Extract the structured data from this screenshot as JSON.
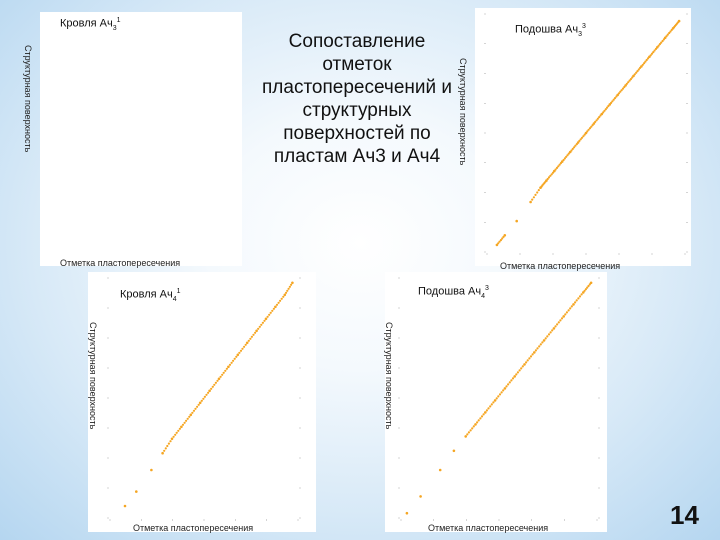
{
  "slide": {
    "title": "Сопоставление отметок пластопересечений и структурных поверхностей по пластам Ач3 и Ач4",
    "page_number": "14"
  },
  "colors": {
    "points": "#f5a623",
    "background_accent": "#b5d6f0"
  },
  "panels": {
    "top_left": {
      "title_main": "Кровля Ач",
      "title_sub": "3",
      "title_sup": "1",
      "ylabel": "Структурная поверхность",
      "xlabel": "Отметка пластопересечения"
    },
    "top_right": {
      "title_main": "Подошва Ач",
      "title_sub": "3",
      "title_sup": "3",
      "ylabel": "Структурная поверхность",
      "xlabel": "Отметка пластопересечения"
    },
    "bottom_left": {
      "title_main": "Кровля Ач",
      "title_sub": "4",
      "title_sup": "1",
      "ylabel": "Структурная поверхность",
      "xlabel": "Отметка пластопересечения"
    },
    "bottom_right": {
      "title_main": "Подошва Ач",
      "title_sub": "4",
      "title_sup": "3",
      "ylabel": "Структурная поверхность",
      "xlabel": "Отметка пластопересечения"
    }
  },
  "chart_data": [
    {
      "type": "scatter",
      "panel": "top_right",
      "title": "Подошва Ач3 3",
      "xlabel": "Отметка пластопересечения",
      "ylabel": "Структурная поверхность",
      "x": [
        0.05,
        0.09,
        0.15,
        0.22,
        0.27,
        0.3,
        0.34,
        0.38,
        0.42,
        0.46,
        0.5,
        0.54,
        0.58,
        0.62,
        0.66,
        0.7,
        0.74,
        0.78,
        0.82,
        0.86,
        0.9,
        0.94,
        0.97
      ],
      "y": [
        0.03,
        0.07,
        0.13,
        0.21,
        0.27,
        0.3,
        0.34,
        0.38,
        0.42,
        0.46,
        0.5,
        0.54,
        0.58,
        0.62,
        0.66,
        0.7,
        0.74,
        0.78,
        0.82,
        0.86,
        0.9,
        0.94,
        0.97
      ]
    },
    {
      "type": "scatter",
      "panel": "bottom_left",
      "title": "Кровля Ач4 1",
      "xlabel": "Отметка пластопересечения",
      "ylabel": "Структурная поверхность",
      "x": [
        0.08,
        0.14,
        0.22,
        0.28,
        0.33,
        0.38,
        0.43,
        0.48,
        0.53,
        0.58,
        0.63,
        0.68,
        0.73,
        0.78,
        0.83,
        0.88,
        0.93,
        0.97
      ],
      "y": [
        0.05,
        0.11,
        0.2,
        0.27,
        0.33,
        0.38,
        0.43,
        0.48,
        0.53,
        0.58,
        0.63,
        0.68,
        0.73,
        0.78,
        0.83,
        0.88,
        0.93,
        0.98
      ]
    },
    {
      "type": "scatter",
      "panel": "bottom_right",
      "title": "Подошва Ач4 3",
      "xlabel": "Отметка пластопересечения",
      "ylabel": "Структурная поверхность",
      "x": [
        0.03,
        0.1,
        0.2,
        0.27,
        0.33,
        0.38,
        0.43,
        0.48,
        0.53,
        0.58,
        0.63,
        0.68,
        0.73,
        0.78,
        0.83,
        0.88,
        0.93,
        0.97
      ],
      "y": [
        0.02,
        0.09,
        0.2,
        0.28,
        0.34,
        0.39,
        0.44,
        0.49,
        0.54,
        0.59,
        0.64,
        0.69,
        0.74,
        0.79,
        0.84,
        0.89,
        0.94,
        0.98
      ]
    }
  ]
}
